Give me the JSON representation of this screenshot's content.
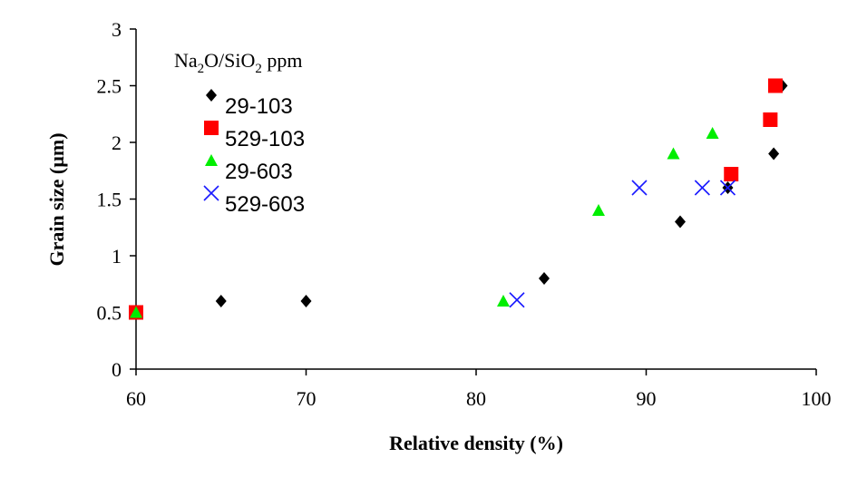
{
  "chart_data": {
    "type": "scatter",
    "xlabel": "Relative density (%)",
    "ylabel": "Grain size (µm)",
    "xlim": [
      60,
      100
    ],
    "ylim": [
      0,
      3
    ],
    "xticks": [
      60,
      70,
      80,
      90,
      100
    ],
    "yticks": [
      0,
      0.5,
      1,
      1.5,
      2,
      2.5,
      3
    ],
    "grid": false,
    "legend": {
      "placement": "top-left",
      "title_prefix": "Na",
      "title_sub1": "2",
      "title_mid": "O/SiO",
      "title_sub2": "2",
      "title_suffix": " ppm"
    },
    "series": [
      {
        "name": "29-103",
        "marker": "diamond",
        "color": "#000000",
        "points": [
          [
            60,
            0.5
          ],
          [
            65,
            0.6
          ],
          [
            70,
            0.6
          ],
          [
            84,
            0.8
          ],
          [
            92,
            1.3
          ],
          [
            94.8,
            1.6
          ],
          [
            97.5,
            1.9
          ],
          [
            98,
            2.5
          ]
        ]
      },
      {
        "name": "529-103",
        "marker": "square",
        "color": "#ff0000",
        "points": [
          [
            60,
            0.5
          ],
          [
            95,
            1.72
          ],
          [
            97.3,
            2.2
          ],
          [
            97.6,
            2.5
          ]
        ]
      },
      {
        "name": "29-603",
        "marker": "triangle",
        "color": "#00ee00",
        "points": [
          [
            60,
            0.5
          ],
          [
            81.6,
            0.6
          ],
          [
            87.2,
            1.4
          ],
          [
            91.6,
            1.9
          ],
          [
            93.9,
            2.08
          ]
        ]
      },
      {
        "name": "529-603",
        "marker": "cross",
        "color": "#1a1aff",
        "points": [
          [
            82.4,
            0.61
          ],
          [
            89.6,
            1.6
          ],
          [
            93.3,
            1.6
          ],
          [
            94.8,
            1.6
          ]
        ]
      }
    ]
  }
}
